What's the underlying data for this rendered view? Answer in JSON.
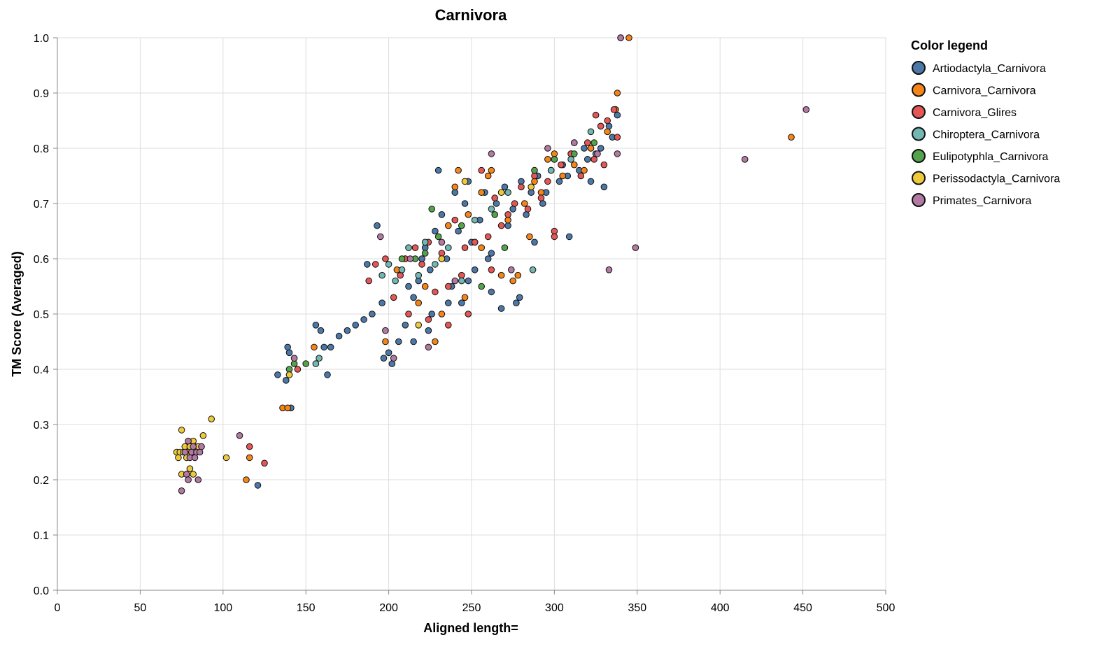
{
  "chart_data": {
    "type": "scatter",
    "title": "Carnivora",
    "xlabel": "Aligned length=",
    "ylabel": "TM Score (Averaged)",
    "xlim": [
      0,
      500
    ],
    "ylim": [
      0.0,
      1.0
    ],
    "x_ticks": [
      "0",
      "50",
      "100",
      "150",
      "200",
      "250",
      "300",
      "350",
      "400",
      "450",
      "500"
    ],
    "y_ticks": [
      "0.0",
      "0.1",
      "0.2",
      "0.3",
      "0.4",
      "0.5",
      "0.6",
      "0.7",
      "0.8",
      "0.9",
      "1.0"
    ],
    "grid": true,
    "legend_title": "Color legend",
    "legend_position": "right",
    "series": [
      {
        "name": "Artiodactyla_Carnivora",
        "color": "#4c78a8",
        "points": [
          [
            121,
            0.19
          ],
          [
            133,
            0.39
          ],
          [
            139,
            0.44
          ],
          [
            140,
            0.43
          ],
          [
            138,
            0.38
          ],
          [
            141,
            0.33
          ],
          [
            156,
            0.48
          ],
          [
            159,
            0.47
          ],
          [
            161,
            0.44
          ],
          [
            163,
            0.39
          ],
          [
            165,
            0.44
          ],
          [
            170,
            0.46
          ],
          [
            175,
            0.47
          ],
          [
            180,
            0.48
          ],
          [
            185,
            0.49
          ],
          [
            190,
            0.5
          ],
          [
            193,
            0.66
          ],
          [
            187,
            0.59
          ],
          [
            196,
            0.52
          ],
          [
            197,
            0.42
          ],
          [
            200,
            0.43
          ],
          [
            202,
            0.41
          ],
          [
            206,
            0.45
          ],
          [
            210,
            0.48
          ],
          [
            212,
            0.55
          ],
          [
            215,
            0.53
          ],
          [
            218,
            0.56
          ],
          [
            220,
            0.6
          ],
          [
            222,
            0.62
          ],
          [
            225,
            0.58
          ],
          [
            226,
            0.5
          ],
          [
            228,
            0.65
          ],
          [
            230,
            0.76
          ],
          [
            232,
            0.68
          ],
          [
            235,
            0.6
          ],
          [
            238,
            0.55
          ],
          [
            240,
            0.72
          ],
          [
            242,
            0.65
          ],
          [
            244,
            0.52
          ],
          [
            246,
            0.7
          ],
          [
            248,
            0.74
          ],
          [
            250,
            0.63
          ],
          [
            252,
            0.58
          ],
          [
            255,
            0.67
          ],
          [
            258,
            0.72
          ],
          [
            260,
            0.6
          ],
          [
            262,
            0.54
          ],
          [
            265,
            0.7
          ],
          [
            268,
            0.51
          ],
          [
            270,
            0.73
          ],
          [
            272,
            0.66
          ],
          [
            275,
            0.69
          ],
          [
            277,
            0.52
          ],
          [
            279,
            0.53
          ],
          [
            280,
            0.74
          ],
          [
            283,
            0.68
          ],
          [
            286,
            0.72
          ],
          [
            288,
            0.63
          ],
          [
            290,
            0.75
          ],
          [
            293,
            0.7
          ],
          [
            295,
            0.72
          ],
          [
            298,
            0.76
          ],
          [
            300,
            0.78
          ],
          [
            303,
            0.74
          ],
          [
            305,
            0.77
          ],
          [
            308,
            0.75
          ],
          [
            310,
            0.79
          ],
          [
            312,
            0.81
          ],
          [
            315,
            0.76
          ],
          [
            318,
            0.8
          ],
          [
            320,
            0.78
          ],
          [
            322,
            0.74
          ],
          [
            325,
            0.79
          ],
          [
            328,
            0.8
          ],
          [
            330,
            0.73
          ],
          [
            333,
            0.84
          ],
          [
            335,
            0.82
          ],
          [
            338,
            0.86
          ],
          [
            309,
            0.64
          ],
          [
            262,
            0.61
          ],
          [
            248,
            0.56
          ],
          [
            236,
            0.52
          ],
          [
            224,
            0.47
          ],
          [
            215,
            0.45
          ]
        ]
      },
      {
        "name": "Carnivora_Carnivora",
        "color": "#f58518",
        "points": [
          [
            114,
            0.2
          ],
          [
            116,
            0.24
          ],
          [
            136,
            0.33
          ],
          [
            139,
            0.33
          ],
          [
            155,
            0.44
          ],
          [
            198,
            0.45
          ],
          [
            205,
            0.58
          ],
          [
            210,
            0.6
          ],
          [
            218,
            0.52
          ],
          [
            222,
            0.55
          ],
          [
            228,
            0.45
          ],
          [
            232,
            0.6
          ],
          [
            236,
            0.66
          ],
          [
            240,
            0.73
          ],
          [
            242,
            0.76
          ],
          [
            248,
            0.68
          ],
          [
            252,
            0.63
          ],
          [
            256,
            0.72
          ],
          [
            260,
            0.75
          ],
          [
            262,
            0.76
          ],
          [
            268,
            0.57
          ],
          [
            275,
            0.56
          ],
          [
            278,
            0.57
          ],
          [
            282,
            0.7
          ],
          [
            288,
            0.74
          ],
          [
            292,
            0.72
          ],
          [
            296,
            0.78
          ],
          [
            300,
            0.79
          ],
          [
            305,
            0.75
          ],
          [
            312,
            0.77
          ],
          [
            318,
            0.76
          ],
          [
            322,
            0.8
          ],
          [
            328,
            0.84
          ],
          [
            332,
            0.83
          ],
          [
            337,
            0.87
          ],
          [
            338,
            0.9
          ],
          [
            340,
            1.0
          ],
          [
            345,
            1.0
          ],
          [
            443,
            0.82
          ],
          [
            232,
            0.5
          ],
          [
            246,
            0.53
          ],
          [
            256,
            0.62
          ],
          [
            272,
            0.67
          ],
          [
            285,
            0.64
          ]
        ]
      },
      {
        "name": "Carnivora_Glires",
        "color": "#e45756",
        "points": [
          [
            116,
            0.26
          ],
          [
            125,
            0.23
          ],
          [
            140,
            0.39
          ],
          [
            145,
            0.4
          ],
          [
            188,
            0.56
          ],
          [
            192,
            0.59
          ],
          [
            198,
            0.6
          ],
          [
            203,
            0.53
          ],
          [
            207,
            0.57
          ],
          [
            212,
            0.5
          ],
          [
            216,
            0.62
          ],
          [
            220,
            0.59
          ],
          [
            224,
            0.63
          ],
          [
            228,
            0.54
          ],
          [
            232,
            0.61
          ],
          [
            236,
            0.55
          ],
          [
            240,
            0.67
          ],
          [
            244,
            0.57
          ],
          [
            248,
            0.5
          ],
          [
            252,
            0.63
          ],
          [
            256,
            0.76
          ],
          [
            260,
            0.64
          ],
          [
            264,
            0.71
          ],
          [
            268,
            0.66
          ],
          [
            272,
            0.68
          ],
          [
            276,
            0.7
          ],
          [
            280,
            0.73
          ],
          [
            284,
            0.69
          ],
          [
            288,
            0.75
          ],
          [
            292,
            0.71
          ],
          [
            296,
            0.74
          ],
          [
            300,
            0.65
          ],
          [
            300,
            0.64
          ],
          [
            304,
            0.77
          ],
          [
            310,
            0.79
          ],
          [
            316,
            0.75
          ],
          [
            320,
            0.81
          ],
          [
            324,
            0.78
          ],
          [
            328,
            0.84
          ],
          [
            332,
            0.85
          ],
          [
            336,
            0.87
          ],
          [
            338,
            0.82
          ],
          [
            330,
            0.77
          ],
          [
            325,
            0.86
          ],
          [
            210,
            0.6
          ],
          [
            224,
            0.49
          ],
          [
            236,
            0.48
          ],
          [
            246,
            0.62
          ],
          [
            262,
            0.58
          ]
        ]
      },
      {
        "name": "Chiroptera_Carnivora",
        "color": "#72b7b2",
        "points": [
          [
            156,
            0.41
          ],
          [
            158,
            0.42
          ],
          [
            196,
            0.57
          ],
          [
            200,
            0.59
          ],
          [
            204,
            0.56
          ],
          [
            208,
            0.58
          ],
          [
            212,
            0.62
          ],
          [
            218,
            0.57
          ],
          [
            222,
            0.63
          ],
          [
            228,
            0.59
          ],
          [
            236,
            0.62
          ],
          [
            244,
            0.56
          ],
          [
            252,
            0.67
          ],
          [
            262,
            0.69
          ],
          [
            272,
            0.72
          ],
          [
            287,
            0.58
          ],
          [
            298,
            0.76
          ],
          [
            310,
            0.78
          ],
          [
            322,
            0.83
          ]
        ]
      },
      {
        "name": "Eulipotyphla_Carnivora",
        "color": "#54a24b",
        "points": [
          [
            140,
            0.4
          ],
          [
            143,
            0.41
          ],
          [
            150,
            0.41
          ],
          [
            208,
            0.6
          ],
          [
            216,
            0.6
          ],
          [
            222,
            0.61
          ],
          [
            226,
            0.69
          ],
          [
            230,
            0.64
          ],
          [
            244,
            0.66
          ],
          [
            256,
            0.55
          ],
          [
            264,
            0.68
          ],
          [
            270,
            0.62
          ],
          [
            288,
            0.76
          ],
          [
            300,
            0.78
          ],
          [
            312,
            0.79
          ],
          [
            324,
            0.81
          ]
        ]
      },
      {
        "name": "Perissodactyla_Carnivora",
        "color": "#eeca3b",
        "points": [
          [
            72,
            0.25
          ],
          [
            73,
            0.24
          ],
          [
            74,
            0.25
          ],
          [
            75,
            0.29
          ],
          [
            75,
            0.21
          ],
          [
            76,
            0.25
          ],
          [
            77,
            0.26
          ],
          [
            78,
            0.24
          ],
          [
            78,
            0.21
          ],
          [
            79,
            0.25
          ],
          [
            80,
            0.26
          ],
          [
            80,
            0.22
          ],
          [
            81,
            0.25
          ],
          [
            82,
            0.27
          ],
          [
            82,
            0.21
          ],
          [
            83,
            0.26
          ],
          [
            84,
            0.25
          ],
          [
            85,
            0.26
          ],
          [
            88,
            0.28
          ],
          [
            93,
            0.31
          ],
          [
            102,
            0.24
          ],
          [
            140,
            0.39
          ],
          [
            218,
            0.48
          ],
          [
            232,
            0.6
          ],
          [
            246,
            0.74
          ],
          [
            268,
            0.72
          ],
          [
            286,
            0.73
          ]
        ]
      },
      {
        "name": "Primates_Carnivora",
        "color": "#b279a2",
        "points": [
          [
            75,
            0.18
          ],
          [
            77,
            0.25
          ],
          [
            78,
            0.21
          ],
          [
            79,
            0.27
          ],
          [
            79,
            0.2
          ],
          [
            80,
            0.24
          ],
          [
            81,
            0.25
          ],
          [
            82,
            0.26
          ],
          [
            83,
            0.24
          ],
          [
            84,
            0.25
          ],
          [
            85,
            0.2
          ],
          [
            86,
            0.25
          ],
          [
            87,
            0.26
          ],
          [
            110,
            0.28
          ],
          [
            143,
            0.42
          ],
          [
            195,
            0.64
          ],
          [
            198,
            0.47
          ],
          [
            203,
            0.42
          ],
          [
            213,
            0.6
          ],
          [
            224,
            0.44
          ],
          [
            232,
            0.63
          ],
          [
            240,
            0.56
          ],
          [
            262,
            0.79
          ],
          [
            274,
            0.58
          ],
          [
            296,
            0.8
          ],
          [
            312,
            0.81
          ],
          [
            326,
            0.79
          ],
          [
            338,
            0.79
          ],
          [
            333,
            0.58
          ],
          [
            340,
            1.0
          ],
          [
            349,
            0.62
          ],
          [
            415,
            0.78
          ],
          [
            452,
            0.87
          ]
        ]
      }
    ]
  }
}
